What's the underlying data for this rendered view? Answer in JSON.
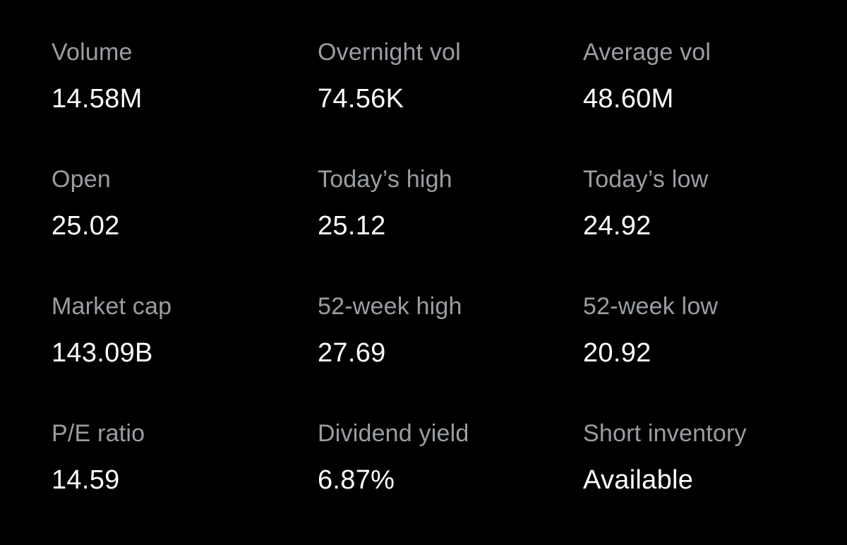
{
  "stats": [
    {
      "label": "Volume",
      "value": "14.58M"
    },
    {
      "label": "Overnight vol",
      "value": "74.56K"
    },
    {
      "label": "Average vol",
      "value": "48.60M"
    },
    {
      "label": "Open",
      "value": "25.02"
    },
    {
      "label": "Today’s high",
      "value": "25.12"
    },
    {
      "label": "Today’s low",
      "value": "24.92"
    },
    {
      "label": "Market cap",
      "value": "143.09B"
    },
    {
      "label": "52-week high",
      "value": "27.69"
    },
    {
      "label": "52-week low",
      "value": "20.92"
    },
    {
      "label": "P/E ratio",
      "value": "14.59"
    },
    {
      "label": "Dividend yield",
      "value": "6.87%"
    },
    {
      "label": "Short inventory",
      "value": "Available"
    }
  ],
  "colors": {
    "background": "#000000",
    "label": "#9a9ea3",
    "value": "#ffffff"
  }
}
